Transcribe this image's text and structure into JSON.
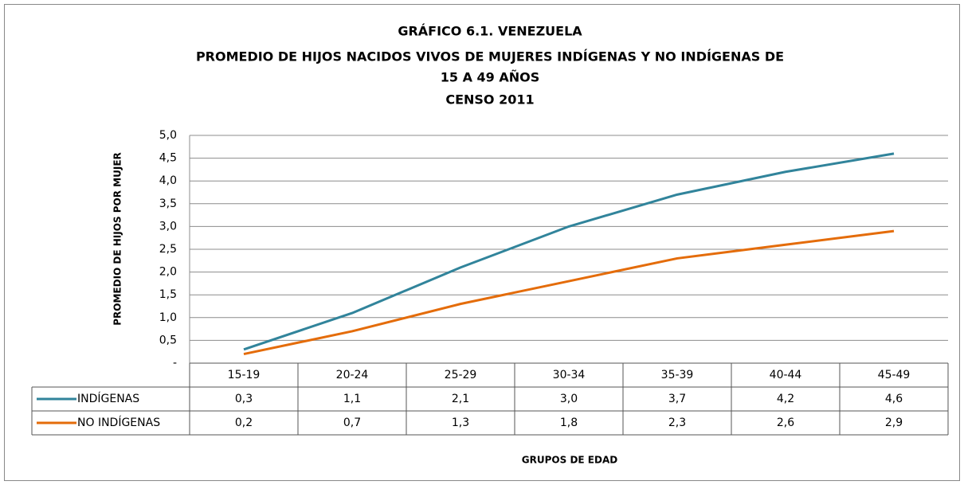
{
  "chart_data": {
    "type": "line",
    "title": [
      "GRÁFICO 6.1. VENEZUELA",
      "PROMEDIO DE HIJOS NACIDOS VIVOS DE MUJERES INDÍGENAS Y NO INDÍGENAS DE",
      "15 A 49 AÑOS",
      "CENSO 2011"
    ],
    "x_label": "GRUPOS DE EDAD",
    "y_label": "PROMEDIO DE HIJOS POR MUJER",
    "categories": [
      "15-19",
      "20-24",
      "25-29",
      "30-34",
      "35-39",
      "40-44",
      "45-49"
    ],
    "series": [
      {
        "name": "INDÍGENAS",
        "color": "#31849b",
        "values": [
          0.3,
          1.1,
          2.1,
          3.0,
          3.7,
          4.2,
          4.6
        ],
        "value_labels": [
          "0,3",
          "1,1",
          "2,1",
          "3,0",
          "3,7",
          "4,2",
          "4,6"
        ]
      },
      {
        "name": "NO INDÍGENAS",
        "color": "#e46c0a",
        "values": [
          0.2,
          0.7,
          1.3,
          1.8,
          2.3,
          2.6,
          2.9
        ],
        "value_labels": [
          "0,2",
          "0,7",
          "1,3",
          "1,8",
          "2,3",
          "2,6",
          "2,9"
        ]
      }
    ],
    "ylim": [
      0,
      5
    ],
    "yticks": [
      {
        "value": 0,
        "label": "-"
      },
      {
        "value": 0.5,
        "label": "0,5"
      },
      {
        "value": 1,
        "label": "1,0"
      },
      {
        "value": 1.5,
        "label": "1,5"
      },
      {
        "value": 2,
        "label": "2,0"
      },
      {
        "value": 2.5,
        "label": "2,5"
      },
      {
        "value": 3,
        "label": "3,0"
      },
      {
        "value": 3.5,
        "label": "3,5"
      },
      {
        "value": 4,
        "label": "4,0"
      },
      {
        "value": 4.5,
        "label": "4,5"
      },
      {
        "value": 5,
        "label": "5,0"
      }
    ],
    "grid": true
  }
}
